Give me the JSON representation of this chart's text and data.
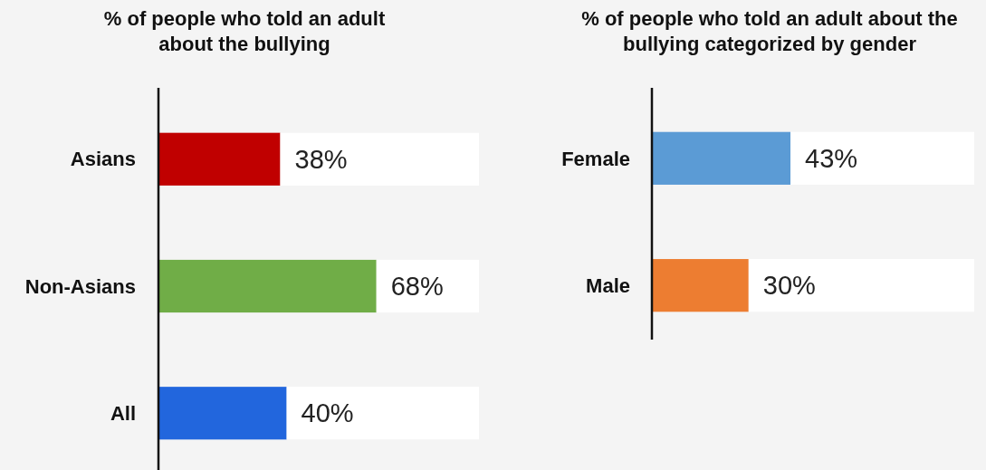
{
  "chart_data": [
    {
      "type": "bar",
      "orientation": "horizontal",
      "stacked": true,
      "title": "% of people who told an adult about the bullying",
      "categories": [
        "Asians",
        "Non-Asians",
        "All"
      ],
      "xlim": [
        0,
        100
      ],
      "series": [
        {
          "colors": [
            "#c00000",
            "#70ad47",
            "#2266dd"
          ],
          "values": [
            38,
            68,
            40
          ],
          "value_labels": [
            "38%",
            "68%",
            "40%"
          ]
        },
        {
          "color": "#ffffff",
          "values": [
            62,
            32,
            60
          ]
        }
      ]
    },
    {
      "type": "bar",
      "orientation": "horizontal",
      "stacked": true,
      "title": "% of people who told an adult about the bullying categorized by gender",
      "categories": [
        "Female",
        "Male"
      ],
      "xlim": [
        0,
        100
      ],
      "series": [
        {
          "colors": [
            "#5b9bd5",
            "#ed7d31"
          ],
          "values": [
            43,
            30
          ],
          "value_labels": [
            "43%",
            "30%"
          ]
        },
        {
          "color": "#ffffff",
          "values": [
            57,
            70
          ]
        }
      ]
    }
  ]
}
